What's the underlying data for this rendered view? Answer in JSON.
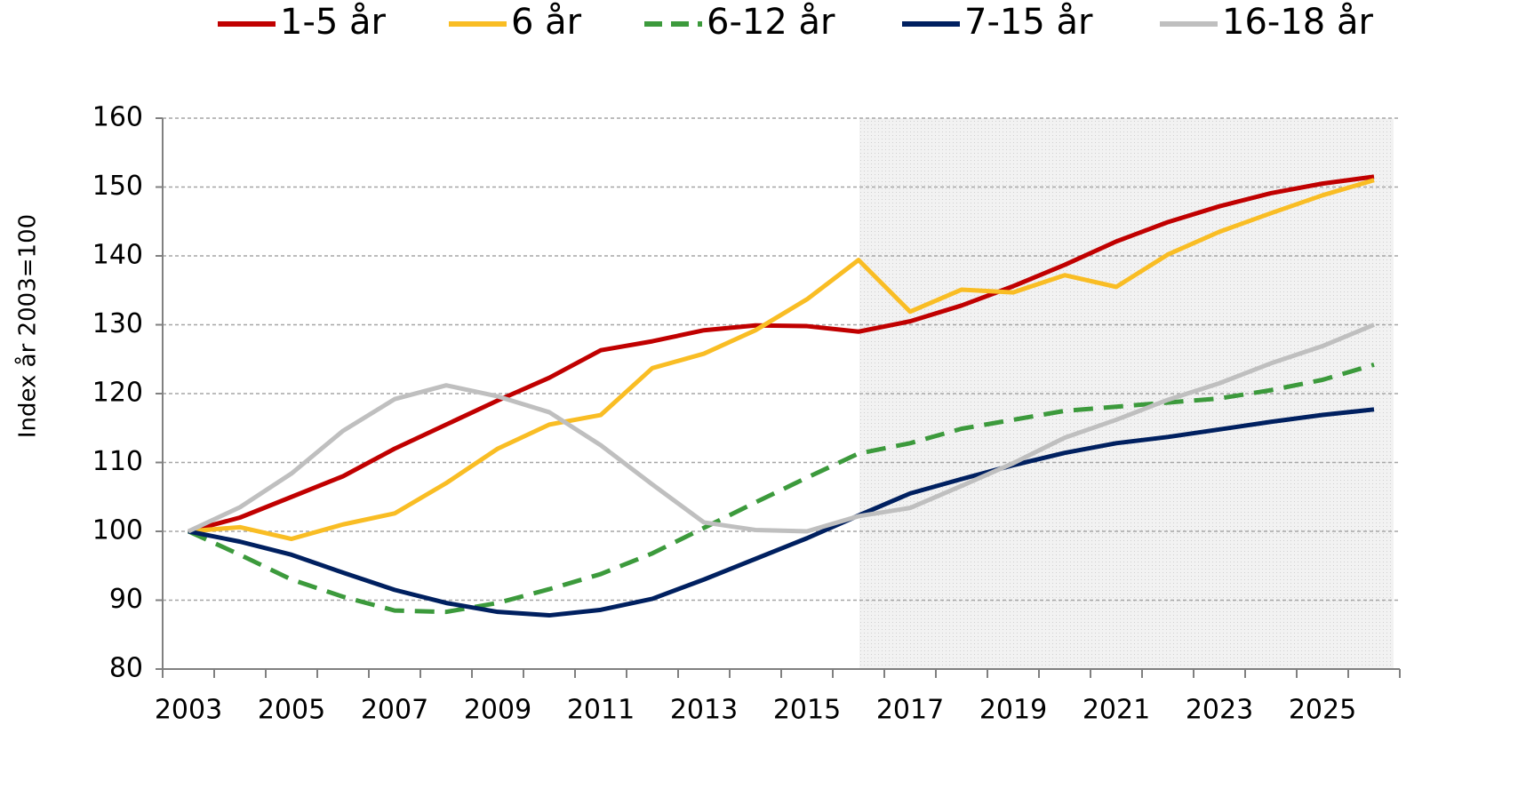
{
  "chart_data": {
    "type": "line",
    "ylabel": "Index år 2003=100",
    "categories": [
      "2003",
      null,
      "2005",
      null,
      "2007",
      null,
      "2009",
      null,
      "2011",
      null,
      "2013",
      null,
      "2015",
      null,
      "2017",
      null,
      "2019",
      null,
      "2021",
      null,
      "2023",
      null,
      "2025",
      null
    ],
    "ylim": [
      80,
      160
    ],
    "yticks": [
      80,
      90,
      100,
      110,
      120,
      130,
      140,
      150,
      160
    ],
    "grid": true,
    "legend": "top",
    "series": [
      {
        "name": "1-5 år",
        "color": "#c00000",
        "dash": false,
        "values": [
          100,
          102,
          105,
          108,
          112,
          115.5,
          119,
          122.3,
          126.3,
          127.6,
          129.2,
          129.9,
          129.8,
          129,
          130.5,
          132.8,
          135.6,
          138.7,
          142.1,
          144.9,
          147.2,
          149.1,
          150.5,
          151.5
        ]
      },
      {
        "name": "6 år",
        "color": "#f9bd24",
        "dash": false,
        "values": [
          100,
          100.6,
          98.9,
          101,
          102.6,
          107,
          112,
          115.5,
          116.9,
          123.7,
          125.8,
          129.2,
          133.7,
          139.4,
          131.9,
          135.1,
          134.7,
          137.2,
          135.5,
          140.2,
          143.5,
          146.2,
          148.8,
          151
        ]
      },
      {
        "name": "6-12 år",
        "color": "#3c9a3c",
        "dash": true,
        "values": [
          100,
          96.6,
          93,
          90.5,
          88.5,
          88.3,
          89.6,
          91.6,
          93.8,
          96.8,
          100.5,
          104.2,
          107.8,
          111.3,
          112.8,
          114.9,
          116.2,
          117.5,
          118.1,
          118.7,
          119.3,
          120.5,
          122,
          124.2
        ]
      },
      {
        "name": "7-15 år",
        "color": "#002060",
        "dash": false,
        "values": [
          100,
          98.5,
          96.6,
          94,
          91.5,
          89.6,
          88.3,
          87.8,
          88.6,
          90.2,
          93,
          96,
          99,
          102.3,
          105.5,
          107.6,
          109.6,
          111.4,
          112.8,
          113.7,
          114.8,
          115.9,
          116.9,
          117.7
        ]
      },
      {
        "name": "16-18 år",
        "color": "#bfbfbf",
        "dash": false,
        "values": [
          100,
          103.5,
          108.4,
          114.6,
          119.2,
          121.2,
          119.6,
          117.3,
          112.5,
          106.8,
          101.3,
          100.2,
          100,
          102.2,
          103.4,
          106.6,
          109.9,
          113.6,
          116.2,
          119.1,
          121.5,
          124.4,
          126.9,
          130
        ]
      }
    ]
  }
}
